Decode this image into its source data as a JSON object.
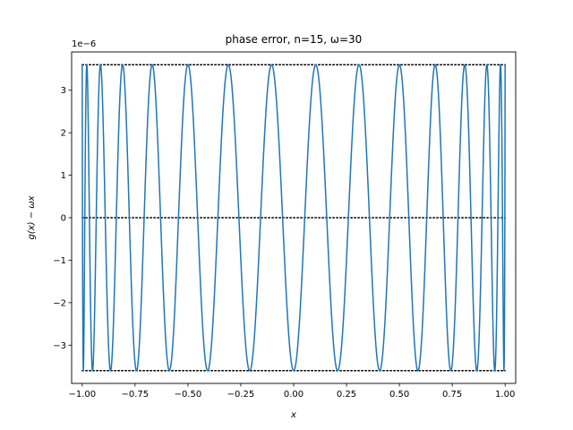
{
  "chart_data": {
    "type": "line",
    "title": "phase error, n=15, ω=30",
    "xlabel": "x",
    "ylabel": "g(x) − ωx",
    "y_multiplier": "1e−6",
    "xlim": [
      -1.05,
      1.05
    ],
    "ylim": [
      -3.9,
      3.9
    ],
    "xticks": [
      -1.0,
      -0.75,
      -0.5,
      -0.25,
      0.0,
      0.25,
      0.5,
      0.75,
      1.0
    ],
    "xtick_labels": [
      "−1.00",
      "−0.75",
      "−0.50",
      "−0.25",
      "0.00",
      "0.25",
      "0.50",
      "0.75",
      "1.00"
    ],
    "yticks": [
      -3,
      -2,
      -1,
      0,
      1,
      2,
      3
    ],
    "ytick_labels": [
      "−3",
      "−2",
      "−1",
      "0",
      "1",
      "2",
      "3"
    ],
    "grid": false,
    "series": [
      {
        "style": "solid",
        "color": "#1f77b4",
        "function": "equiripple",
        "amplitude": 3.6,
        "n": 15,
        "x_range": [
          -1,
          1
        ]
      }
    ],
    "reference_lines": [
      {
        "y": 3.6,
        "style": "dotted",
        "color": "#000000"
      },
      {
        "y": 0,
        "style": "dotted",
        "color": "#000000"
      },
      {
        "y": -3.6,
        "style": "dotted",
        "color": "#000000"
      }
    ]
  }
}
